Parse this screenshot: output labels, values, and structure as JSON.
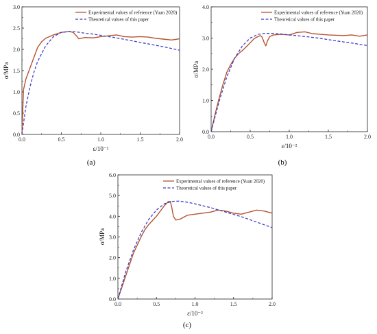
{
  "colors": {
    "experimental": "#b5532f",
    "theoretical": "#3f3fc6",
    "axis": "#222222"
  },
  "chart_data": [
    {
      "type": "line",
      "panel": "a",
      "panel_label": "(a)",
      "xlabel": "ε/10⁻²",
      "ylabel": "σ/MPa",
      "xlim": [
        0,
        2.0
      ],
      "ylim": [
        0,
        3.0
      ],
      "xticks": [
        "0.0",
        "0.5",
        "1.0",
        "1.5",
        "2.0"
      ],
      "yticks": [
        "0.0",
        "0.5",
        "1.0",
        "1.5",
        "2.0",
        "2.5",
        "3.0"
      ],
      "legend_position": "top-right",
      "series": [
        {
          "name": "Experimental values of reference (Yuan 2020)",
          "style": "solid",
          "x": [
            0,
            0.02,
            0.05,
            0.1,
            0.15,
            0.2,
            0.25,
            0.3,
            0.35,
            0.4,
            0.45,
            0.5,
            0.55,
            0.6,
            0.65,
            0.7,
            0.72,
            0.75,
            0.8,
            0.9,
            1.0,
            1.1,
            1.2,
            1.3,
            1.4,
            1.5,
            1.6,
            1.7,
            1.8,
            1.9,
            2.0
          ],
          "y": [
            0,
            1.05,
            1.3,
            1.55,
            1.8,
            2.05,
            2.18,
            2.26,
            2.3,
            2.34,
            2.37,
            2.4,
            2.41,
            2.42,
            2.4,
            2.3,
            2.25,
            2.26,
            2.28,
            2.27,
            2.3,
            2.32,
            2.34,
            2.3,
            2.29,
            2.3,
            2.29,
            2.26,
            2.24,
            2.22,
            2.25
          ]
        },
        {
          "name": "Theoretical values of this paper",
          "style": "dashed",
          "x": [
            0,
            0.05,
            0.1,
            0.15,
            0.2,
            0.3,
            0.4,
            0.5,
            0.6,
            0.7,
            0.8,
            0.9,
            1.0,
            1.2,
            1.4,
            1.6,
            1.8,
            2.0
          ],
          "y": [
            0,
            0.65,
            1.1,
            1.45,
            1.72,
            2.08,
            2.3,
            2.4,
            2.42,
            2.41,
            2.38,
            2.36,
            2.33,
            2.27,
            2.2,
            2.13,
            2.06,
            1.98
          ]
        }
      ]
    },
    {
      "type": "line",
      "panel": "b",
      "panel_label": "(b)",
      "xlabel": "ε/10⁻²",
      "ylabel": "σ/MPa",
      "xlim": [
        0,
        2.0
      ],
      "ylim": [
        0,
        4.0
      ],
      "xticks": [
        "0.0",
        "0.5",
        "1.0",
        "1.5",
        "2.0"
      ],
      "yticks": [
        "0.0",
        "1.0",
        "2.0",
        "3.0",
        "4.0"
      ],
      "legend_position": "top-right",
      "series": [
        {
          "name": "Experimental values of reference (Yuan 2020)",
          "style": "solid",
          "x": [
            0,
            0.05,
            0.1,
            0.15,
            0.2,
            0.25,
            0.3,
            0.35,
            0.4,
            0.45,
            0.5,
            0.55,
            0.6,
            0.63,
            0.65,
            0.68,
            0.7,
            0.72,
            0.75,
            0.8,
            0.9,
            1.0,
            1.1,
            1.2,
            1.3,
            1.4,
            1.5,
            1.6,
            1.7,
            1.8,
            1.9,
            2.0
          ],
          "y": [
            0,
            0.55,
            1.05,
            1.5,
            1.9,
            2.15,
            2.35,
            2.5,
            2.6,
            2.72,
            2.85,
            2.98,
            3.05,
            3.08,
            3.04,
            2.85,
            2.75,
            2.9,
            3.05,
            3.1,
            3.12,
            3.1,
            3.18,
            3.2,
            3.14,
            3.12,
            3.1,
            3.09,
            3.08,
            3.1,
            3.06,
            3.1
          ]
        },
        {
          "name": "Theoretical values of this paper",
          "style": "dashed",
          "x": [
            0,
            0.1,
            0.2,
            0.3,
            0.4,
            0.5,
            0.6,
            0.7,
            0.8,
            0.9,
            1.0,
            1.2,
            1.4,
            1.6,
            1.8,
            2.0
          ],
          "y": [
            0,
            0.95,
            1.75,
            2.35,
            2.75,
            3.0,
            3.12,
            3.15,
            3.15,
            3.13,
            3.1,
            3.05,
            2.99,
            2.91,
            2.84,
            2.76
          ]
        }
      ]
    },
    {
      "type": "line",
      "panel": "c",
      "panel_label": "(c)",
      "xlabel": "ε/10⁻²",
      "ylabel": "σ/MPa",
      "xlim": [
        0,
        2.0
      ],
      "ylim": [
        0,
        6.0
      ],
      "xticks": [
        "0.0",
        "0.5",
        "1.0",
        "1.5",
        "2.0"
      ],
      "yticks": [
        "0.0",
        "1.0",
        "2.0",
        "3.0",
        "4.0",
        "5.0",
        "6.0"
      ],
      "legend_position": "top-right",
      "series": [
        {
          "name": "Experimental values of reference (Yuan 2020)",
          "style": "solid",
          "x": [
            0,
            0.05,
            0.1,
            0.15,
            0.2,
            0.25,
            0.3,
            0.35,
            0.4,
            0.45,
            0.5,
            0.55,
            0.6,
            0.65,
            0.68,
            0.7,
            0.72,
            0.75,
            0.8,
            0.9,
            1.0,
            1.1,
            1.2,
            1.3,
            1.4,
            1.5,
            1.6,
            1.7,
            1.8,
            1.9,
            2.0
          ],
          "y": [
            0,
            0.55,
            1.1,
            1.65,
            2.2,
            2.6,
            3.0,
            3.35,
            3.6,
            3.8,
            4.0,
            4.25,
            4.5,
            4.7,
            4.72,
            4.4,
            4.0,
            3.82,
            3.85,
            4.05,
            4.1,
            4.15,
            4.2,
            4.3,
            4.25,
            4.15,
            4.1,
            4.2,
            4.3,
            4.25,
            4.15
          ]
        },
        {
          "name": "Theoretical values of this paper",
          "style": "dashed",
          "x": [
            0,
            0.1,
            0.2,
            0.3,
            0.4,
            0.5,
            0.6,
            0.7,
            0.8,
            0.9,
            1.0,
            1.2,
            1.4,
            1.6,
            1.8,
            2.0
          ],
          "y": [
            0,
            1.3,
            2.35,
            3.2,
            3.85,
            4.3,
            4.6,
            4.72,
            4.73,
            4.68,
            4.6,
            4.42,
            4.2,
            3.98,
            3.72,
            3.45
          ]
        }
      ]
    }
  ]
}
